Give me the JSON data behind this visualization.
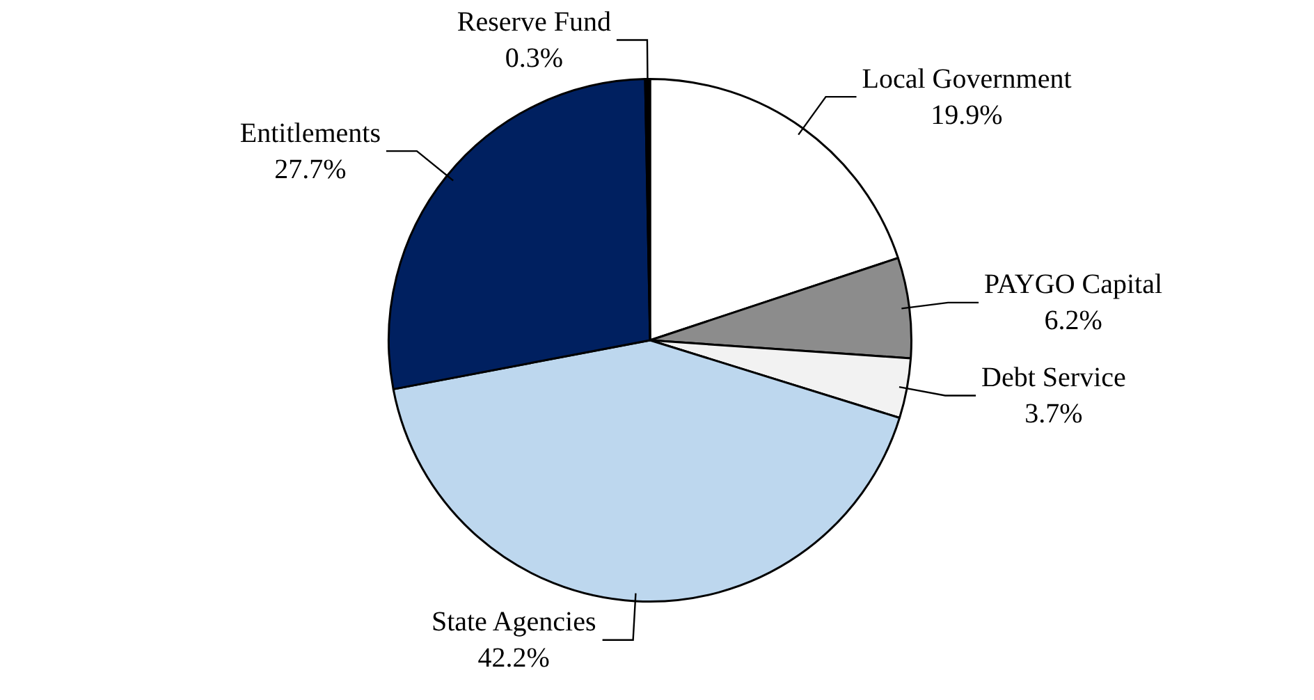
{
  "chart_data": {
    "type": "pie",
    "categories": [
      "Local Government",
      "PAYGO Capital",
      "Debt Service",
      "State Agencies",
      "Entitlements",
      "Reserve Fund"
    ],
    "values": [
      19.9,
      6.2,
      3.7,
      42.2,
      27.7,
      0.3
    ],
    "value_labels": [
      "19.9%",
      "6.2%",
      "3.7%",
      "42.2%",
      "27.7%",
      "0.3%"
    ],
    "colors": [
      "#ffffff",
      "#8c8c8c",
      "#f2f2f2",
      "#bdd7ee",
      "#002060",
      "#000000"
    ]
  }
}
